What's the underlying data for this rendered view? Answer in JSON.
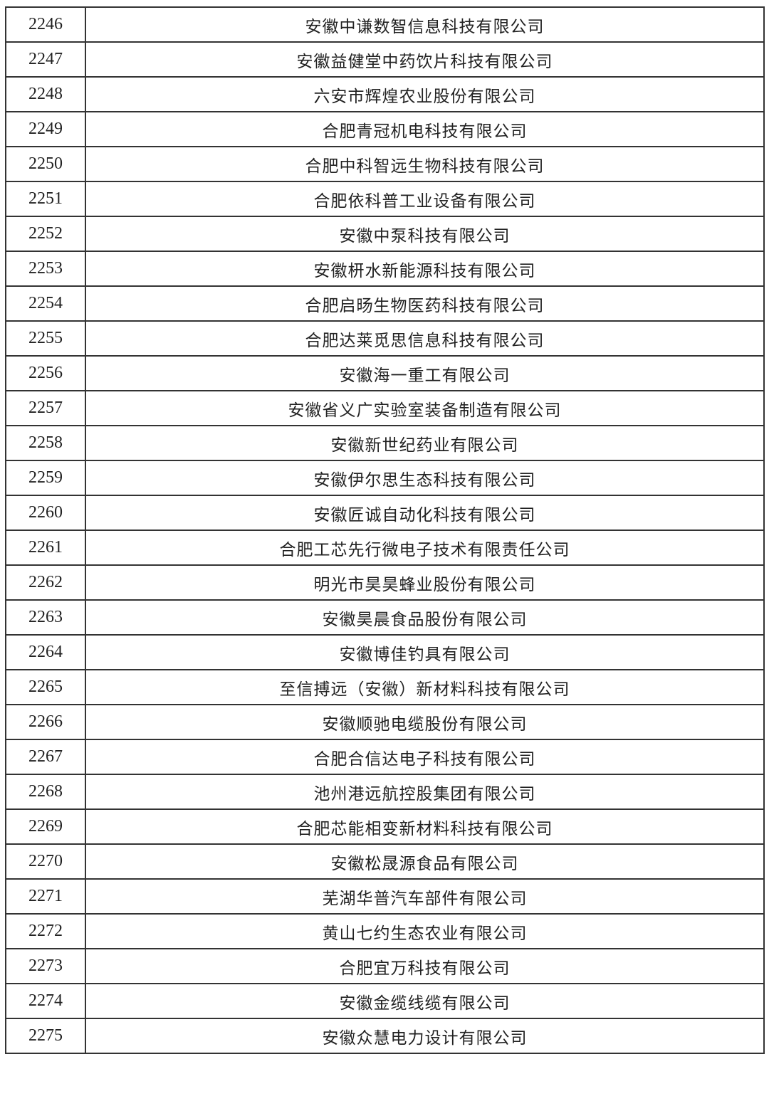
{
  "rows": [
    {
      "no": "2246",
      "name": "安徽中谦数智信息科技有限公司"
    },
    {
      "no": "2247",
      "name": "安徽益健堂中药饮片科技有限公司"
    },
    {
      "no": "2248",
      "name": "六安市辉煌农业股份有限公司"
    },
    {
      "no": "2249",
      "name": "合肥青冠机电科技有限公司"
    },
    {
      "no": "2250",
      "name": "合肥中科智远生物科技有限公司"
    },
    {
      "no": "2251",
      "name": "合肥依科普工业设备有限公司"
    },
    {
      "no": "2252",
      "name": "安徽中泵科技有限公司"
    },
    {
      "no": "2253",
      "name": "安徽枅水新能源科技有限公司"
    },
    {
      "no": "2254",
      "name": "合肥启旸生物医药科技有限公司"
    },
    {
      "no": "2255",
      "name": "合肥达莱觅思信息科技有限公司"
    },
    {
      "no": "2256",
      "name": "安徽海一重工有限公司"
    },
    {
      "no": "2257",
      "name": "安徽省义广实验室装备制造有限公司"
    },
    {
      "no": "2258",
      "name": "安徽新世纪药业有限公司"
    },
    {
      "no": "2259",
      "name": "安徽伊尔思生态科技有限公司"
    },
    {
      "no": "2260",
      "name": "安徽匠诚自动化科技有限公司"
    },
    {
      "no": "2261",
      "name": "合肥工芯先行微电子技术有限责任公司"
    },
    {
      "no": "2262",
      "name": "明光市昊昊蜂业股份有限公司"
    },
    {
      "no": "2263",
      "name": "安徽昊晨食品股份有限公司"
    },
    {
      "no": "2264",
      "name": "安徽博佳钓具有限公司"
    },
    {
      "no": "2265",
      "name": "至信搏远（安徽）新材料科技有限公司"
    },
    {
      "no": "2266",
      "name": "安徽顺驰电缆股份有限公司"
    },
    {
      "no": "2267",
      "name": "合肥合信达电子科技有限公司"
    },
    {
      "no": "2268",
      "name": "池州港远航控股集团有限公司"
    },
    {
      "no": "2269",
      "name": "合肥芯能相变新材料科技有限公司"
    },
    {
      "no": "2270",
      "name": "安徽松晟源食品有限公司"
    },
    {
      "no": "2271",
      "name": "芜湖华普汽车部件有限公司"
    },
    {
      "no": "2272",
      "name": "黄山七约生态农业有限公司"
    },
    {
      "no": "2273",
      "name": "合肥宜万科技有限公司"
    },
    {
      "no": "2274",
      "name": "安徽金缆线缆有限公司"
    },
    {
      "no": "2275",
      "name": "安徽众慧电力设计有限公司"
    }
  ]
}
